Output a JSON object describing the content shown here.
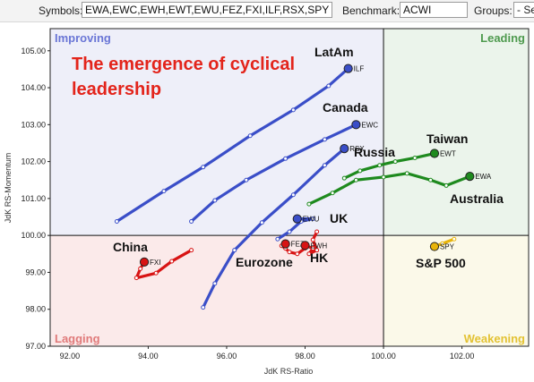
{
  "toolbar": {
    "symbols_label": "Symbols:",
    "symbols_value": "EWA,EWC,EWH,EWT,EWU,FEZ,FXI,ILF,RSX,SPY",
    "benchmark_label": "Benchmark:",
    "benchmark_value": "ACWI",
    "groups_label": "Groups:",
    "groups_value": "- Se"
  },
  "chart_data": {
    "type": "scatter",
    "title": "The emergence of cyclical leadership",
    "xlabel": "JdK RS-Ratio",
    "ylabel": "JdK RS-Momentum",
    "xlim": [
      91.5,
      103.7
    ],
    "ylim": [
      97.0,
      105.6
    ],
    "x_ticks": [
      "92.00",
      "94.00",
      "96.00",
      "98.00",
      "100.00",
      "102.00"
    ],
    "y_ticks": [
      "97.00",
      "98.00",
      "99.00",
      "100.00",
      "101.00",
      "102.00",
      "103.00",
      "104.00",
      "105.00"
    ],
    "grid": false,
    "quadrants": {
      "improving": {
        "label": "Improving",
        "color": "#6a76d6",
        "fill": "#eeeff9"
      },
      "leading": {
        "label": "Leading",
        "color": "#4e9a4e",
        "fill": "#ebf4eb"
      },
      "lagging": {
        "label": "Lagging",
        "color": "#e07a7a",
        "fill": "#fbeaea"
      },
      "weakening": {
        "label": "Weakening",
        "color": "#e3c233",
        "fill": "#fbf9e9"
      }
    },
    "series": [
      {
        "symbol": "ILF",
        "name": "LatAm",
        "color": "#3a4ec8",
        "x": [
          93.2,
          94.4,
          95.4,
          96.6,
          97.7,
          98.6,
          99.1
        ],
        "y": [
          100.38,
          101.2,
          101.85,
          102.7,
          103.4,
          104.05,
          104.52
        ]
      },
      {
        "symbol": "EWC",
        "name": "Canada",
        "color": "#3a4ec8",
        "x": [
          95.1,
          95.7,
          96.5,
          97.5,
          98.5,
          99.3
        ],
        "y": [
          100.38,
          100.95,
          101.5,
          102.08,
          102.6,
          103.0
        ]
      },
      {
        "symbol": "RSX",
        "name": "Russia",
        "color": "#3a4ec8",
        "x": [
          95.4,
          95.7,
          96.2,
          96.9,
          97.7,
          98.5,
          99.0
        ],
        "y": [
          98.05,
          98.7,
          99.6,
          100.35,
          101.1,
          101.9,
          102.35
        ]
      },
      {
        "symbol": "EWU",
        "name": "UK",
        "color": "#3a4ec8",
        "x": [
          97.3,
          97.6,
          97.9,
          98.2,
          97.8
        ],
        "y": [
          99.9,
          100.1,
          100.38,
          100.45,
          100.45
        ]
      },
      {
        "symbol": "EWT",
        "name": "Taiwan",
        "color": "#1e8a1e",
        "x": [
          99.0,
          99.4,
          99.9,
          100.3,
          100.8,
          101.3
        ],
        "y": [
          101.55,
          101.75,
          101.9,
          102.0,
          102.1,
          102.22
        ]
      },
      {
        "symbol": "EWA",
        "name": "Australia",
        "color": "#1e8a1e",
        "x": [
          98.1,
          98.7,
          99.3,
          100.0,
          100.6,
          101.2,
          101.6,
          102.2
        ],
        "y": [
          100.85,
          101.15,
          101.5,
          101.58,
          101.68,
          101.5,
          101.35,
          101.6
        ]
      },
      {
        "symbol": "FEZ",
        "name": "Eurozone",
        "color": "#d81414",
        "x": [
          98.0,
          97.8,
          97.6,
          97.5,
          97.4,
          97.5
        ],
        "y": [
          99.65,
          99.5,
          99.55,
          99.65,
          99.72,
          99.77
        ]
      },
      {
        "symbol": "EWH",
        "name": "HK",
        "color": "#d81414",
        "x": [
          98.3,
          98.2,
          98.3,
          98.1,
          98.2,
          98.0
        ],
        "y": [
          100.1,
          99.88,
          99.6,
          99.5,
          99.65,
          99.73
        ]
      },
      {
        "symbol": "FXI",
        "name": "China",
        "color": "#d81414",
        "x": [
          95.1,
          94.6,
          94.2,
          93.7,
          93.8,
          93.9
        ],
        "y": [
          99.6,
          99.3,
          98.98,
          98.85,
          99.1,
          99.28
        ]
      },
      {
        "symbol": "SPY",
        "name": "S&P 500",
        "color": "#e8b40a",
        "x": [
          101.8,
          101.5,
          101.3
        ],
        "y": [
          99.9,
          99.78,
          99.7
        ]
      }
    ]
  }
}
